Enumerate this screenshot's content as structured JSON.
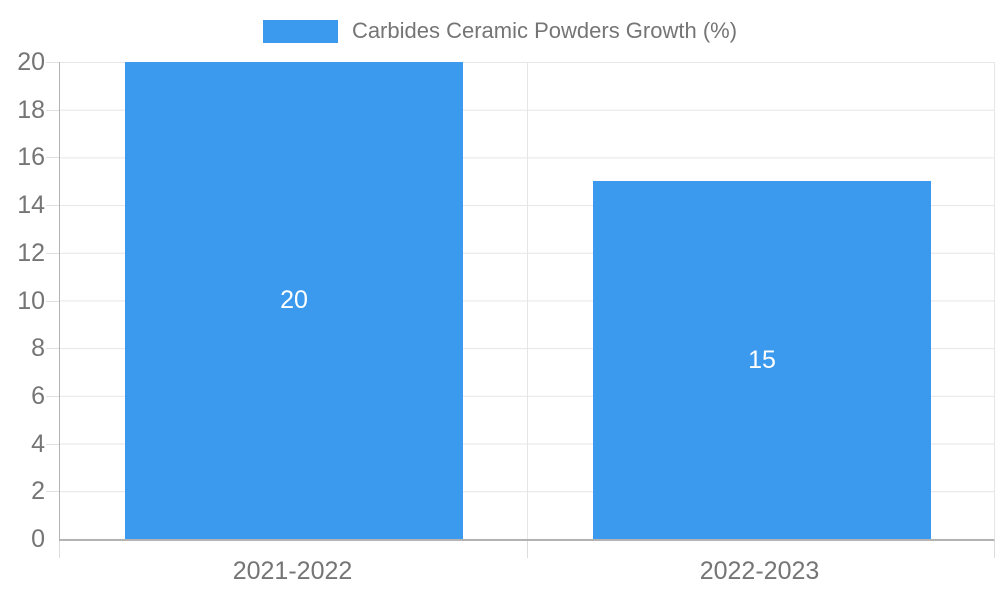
{
  "chart_data": {
    "type": "bar",
    "title": "Carbides Ceramic Powders Growth (%)",
    "categories": [
      "2021-2022",
      "2022-2023"
    ],
    "values": [
      20,
      15
    ],
    "ylim": [
      0,
      20
    ],
    "ytick_step": 2,
    "yticks": [
      "0",
      "2",
      "4",
      "6",
      "8",
      "10",
      "12",
      "14",
      "16",
      "18",
      "20"
    ],
    "grid": "horizontal gridlines on, vertical divider at category boundary",
    "legend_position": "top-center",
    "value_labels": "white, centered inside bars",
    "colors": {
      "bar": "#3B99EE",
      "axis_text": "#757575",
      "gridline": "#e6e6e6",
      "axis_line": "#b3b3b3",
      "value_label": "#ffffff"
    }
  }
}
